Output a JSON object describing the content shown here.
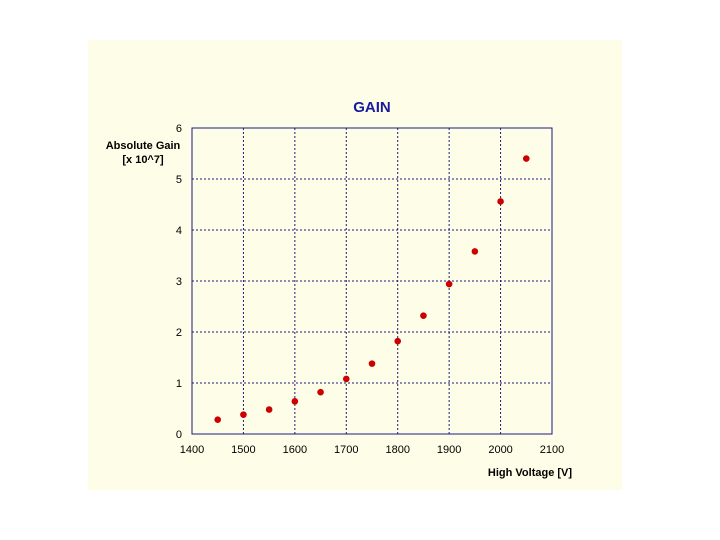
{
  "chart_data": {
    "type": "scatter",
    "title": "GAIN",
    "xlabel": "High Voltage [V]",
    "ylabel_line1": "Absolute Gain",
    "ylabel_line2": "[x 10^7]",
    "xlim": [
      1400,
      2100
    ],
    "ylim": [
      0,
      6
    ],
    "xticks": [
      1400,
      1500,
      1600,
      1700,
      1800,
      1900,
      2000,
      2100
    ],
    "yticks": [
      0,
      1,
      2,
      3,
      4,
      5,
      6
    ],
    "grid": true,
    "point_color": "#cc0000",
    "axis_color": "#1a1a80",
    "x": [
      1450,
      1500,
      1550,
      1600,
      1650,
      1700,
      1750,
      1800,
      1850,
      1900,
      1950,
      2000,
      2050
    ],
    "y": [
      0.28,
      0.38,
      0.48,
      0.64,
      0.82,
      1.08,
      1.38,
      1.82,
      2.32,
      2.94,
      3.58,
      4.56,
      5.4
    ]
  }
}
